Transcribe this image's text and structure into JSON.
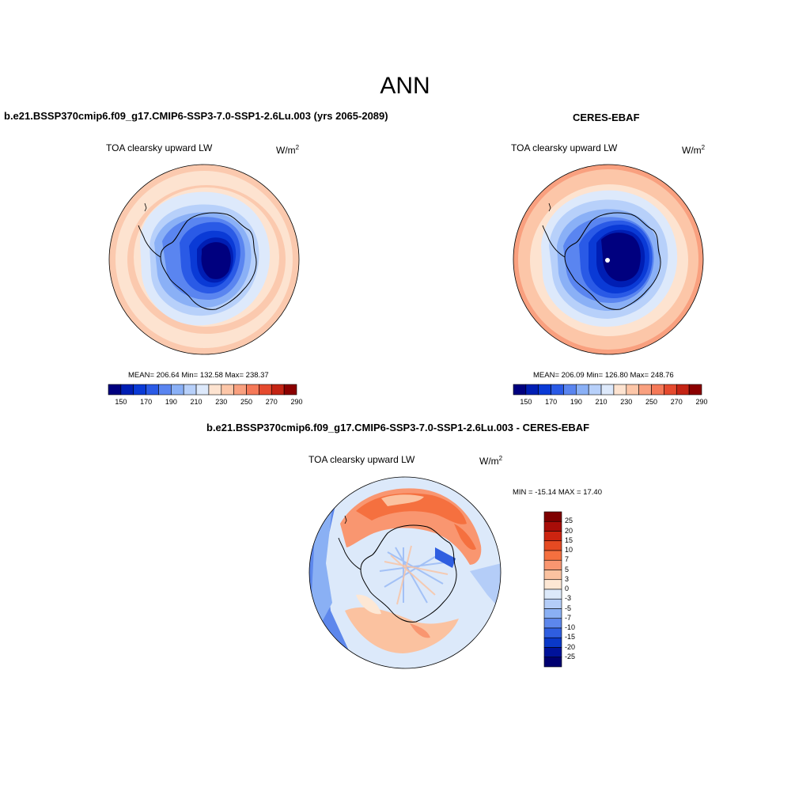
{
  "page": {
    "title": "ANN"
  },
  "panels": [
    {
      "title": "b.e21.BSSP370cmip6.f09_g17.CMIP6-SSP3-7.0-SSP1-2.6Lu.003 (yrs 2065-2089)",
      "variable": "TOA clearsky upward LW",
      "units": "W/m",
      "units_sup": "2",
      "stats": "MEAN= 206.64  Min= 132.58  Max= 238.37"
    },
    {
      "title": "CERES-EBAF",
      "variable": "TOA clearsky upward LW",
      "units": "W/m",
      "units_sup": "2",
      "stats": "MEAN= 206.09  Min= 126.80  Max= 248.76"
    },
    {
      "title": "b.e21.BSSP370cmip6.f09_g17.CMIP6-SSP3-7.0-SSP1-2.6Lu.003 - CERES-EBAF",
      "variable": "TOA clearsky upward LW",
      "units": "W/m",
      "units_sup": "2",
      "stats": "MIN = -15.14 MAX =  17.40"
    }
  ],
  "colorbars": {
    "absolute": {
      "colors": [
        "#00007f",
        "#001eb4",
        "#0a3ad6",
        "#2a5ae6",
        "#5a85f0",
        "#8ab0f6",
        "#b7d0fa",
        "#dde9fb",
        "#fde3d0",
        "#fcc6a8",
        "#f9a07f",
        "#f57958",
        "#e54a2e",
        "#c42414",
        "#8b0000"
      ],
      "tick_labels": [
        "150",
        "170",
        "190",
        "210",
        "230",
        "250",
        "270",
        "290"
      ]
    },
    "difference": {
      "colors": [
        "#7f0000",
        "#a80d08",
        "#cc2410",
        "#e54a22",
        "#f5703f",
        "#f99670",
        "#fbc2a0",
        "#fde7d4",
        "#dce9fa",
        "#b4cdf8",
        "#8ab0f4",
        "#5d87ec",
        "#2f5ee0",
        "#0a38c8",
        "#00129a",
        "#000070"
      ],
      "tick_labels": [
        "25",
        "20",
        "15",
        "10",
        "7",
        "5",
        "3",
        "0",
        "-3",
        "-5",
        "-7",
        "-10",
        "-15",
        "-20",
        "-25"
      ]
    }
  }
}
